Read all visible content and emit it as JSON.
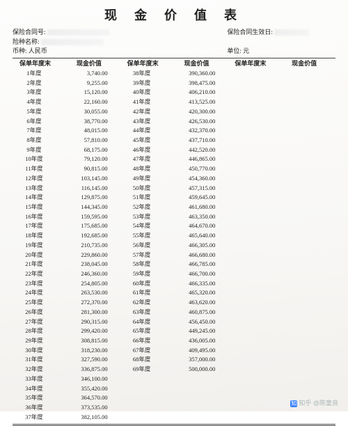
{
  "title": "现 金 价 值 表",
  "meta": {
    "contract_no_label": "保险合同号:",
    "contract_no_value": "",
    "effective_label": "保险合同生效日:",
    "effective_value": "",
    "product_label": "险种名称:",
    "product_value": "",
    "currency_label": "币种: 人民币",
    "unit_label": "单位: 元"
  },
  "headers": {
    "year": "保单年度末",
    "value": "现金价值"
  },
  "col1": [
    [
      "1年度",
      "3,740.00"
    ],
    [
      "2年度",
      "9,255.00"
    ],
    [
      "3年度",
      "15,120.00"
    ],
    [
      "4年度",
      "22,160.00"
    ],
    [
      "5年度",
      "30,055.00"
    ],
    [
      "6年度",
      "38,770.00"
    ],
    [
      "7年度",
      "48,015.00"
    ],
    [
      "8年度",
      "57,810.00"
    ],
    [
      "9年度",
      "68,175.00"
    ],
    [
      "10年度",
      "79,120.00"
    ],
    [
      "11年度",
      "90,815.00"
    ],
    [
      "12年度",
      "103,145.00"
    ],
    [
      "13年度",
      "116,145.00"
    ],
    [
      "14年度",
      "129,875.00"
    ],
    [
      "15年度",
      "144,345.00"
    ],
    [
      "16年度",
      "159,595.00"
    ],
    [
      "17年度",
      "175,685.00"
    ],
    [
      "18年度",
      "192,685.00"
    ],
    [
      "19年度",
      "210,735.00"
    ],
    [
      "20年度",
      "229,860.00"
    ],
    [
      "21年度",
      "238,045.00"
    ],
    [
      "22年度",
      "246,360.00"
    ],
    [
      "23年度",
      "254,805.00"
    ],
    [
      "24年度",
      "263,530.00"
    ],
    [
      "25年度",
      "272,370.00"
    ],
    [
      "26年度",
      "281,300.00"
    ],
    [
      "27年度",
      "290,315.00"
    ],
    [
      "28年度",
      "299,420.00"
    ],
    [
      "29年度",
      "308,815.00"
    ],
    [
      "30年度",
      "318,230.00"
    ],
    [
      "31年度",
      "327,590.00"
    ],
    [
      "32年度",
      "336,875.00"
    ],
    [
      "33年度",
      "346,100.00"
    ],
    [
      "34年度",
      "355,420.00"
    ],
    [
      "35年度",
      "364,570.00"
    ],
    [
      "36年度",
      "373,535.00"
    ],
    [
      "37年度",
      "382,105.00"
    ]
  ],
  "col2": [
    [
      "38年度",
      "390,360.00"
    ],
    [
      "39年度",
      "398,475.00"
    ],
    [
      "40年度",
      "406,210.00"
    ],
    [
      "41年度",
      "413,525.00"
    ],
    [
      "42年度",
      "420,300.00"
    ],
    [
      "43年度",
      "426,530.00"
    ],
    [
      "44年度",
      "432,370.00"
    ],
    [
      "45年度",
      "437,710.00"
    ],
    [
      "46年度",
      "442,520.00"
    ],
    [
      "47年度",
      "446,865.00"
    ],
    [
      "48年度",
      "450,770.00"
    ],
    [
      "49年度",
      "454,360.00"
    ],
    [
      "50年度",
      "457,315.00"
    ],
    [
      "51年度",
      "459,645.00"
    ],
    [
      "52年度",
      "461,680.00"
    ],
    [
      "53年度",
      "463,350.00"
    ],
    [
      "54年度",
      "464,670.00"
    ],
    [
      "55年度",
      "465,640.00"
    ],
    [
      "56年度",
      "466,305.00"
    ],
    [
      "57年度",
      "466,680.00"
    ],
    [
      "58年度",
      "466,785.00"
    ],
    [
      "59年度",
      "466,700.00"
    ],
    [
      "60年度",
      "466,335.00"
    ],
    [
      "61年度",
      "465,320.00"
    ],
    [
      "62年度",
      "463,620.00"
    ],
    [
      "63年度",
      "460,875.00"
    ],
    [
      "64年度",
      "456,450.00"
    ],
    [
      "65年度",
      "449,245.00"
    ],
    [
      "66年度",
      "436,005.00"
    ],
    [
      "67年度",
      "409,495.00"
    ],
    [
      "68年度",
      "357,000.00"
    ],
    [
      "69年度",
      "500,000.00"
    ]
  ],
  "watermark": {
    "icon": "知",
    "text": "知乎 @陈童良"
  },
  "style": {
    "background": "#f8f7f5",
    "title_fontsize": 18,
    "body_fontsize": 8.5,
    "rule_color": "#444444",
    "text_color": "#222222"
  }
}
